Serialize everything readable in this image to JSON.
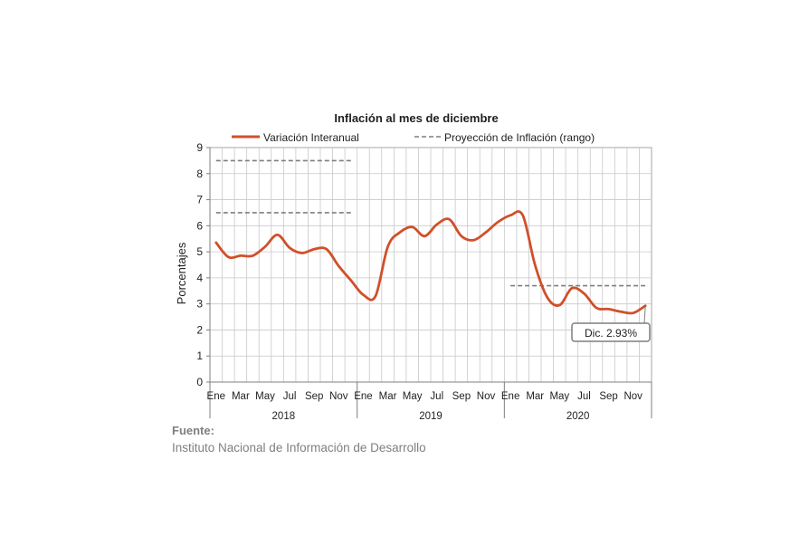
{
  "chart_data": {
    "type": "line",
    "title": "Inflación al mes de diciembre",
    "ylabel": "Porcentajes",
    "ylim": [
      0,
      9
    ],
    "yticks": [
      "0",
      "1",
      "2",
      "3",
      "4",
      "5",
      "6",
      "7",
      "8",
      "9"
    ],
    "month_labels": [
      "Ene",
      "Mar",
      "May",
      "Jul",
      "Sep",
      "Nov"
    ],
    "years": [
      "2018",
      "2019",
      "2020"
    ],
    "grid": true,
    "legend_position": "top",
    "series": [
      {
        "name": "Variación Interanual",
        "color": "#d0502a",
        "values": [
          5.35,
          4.8,
          4.85,
          4.85,
          5.2,
          5.65,
          5.15,
          4.95,
          5.1,
          5.1,
          4.45,
          3.9,
          3.35,
          3.3,
          5.2,
          5.75,
          5.95,
          5.6,
          6.05,
          6.25,
          5.6,
          5.45,
          5.75,
          6.15,
          6.4,
          6.4,
          4.5,
          3.25,
          2.95,
          3.6,
          3.4,
          2.85,
          2.8,
          2.7,
          2.65,
          2.93
        ]
      }
    ],
    "projection": {
      "name": "Proyección de Inflación (rango)",
      "color": "#7f7f7f",
      "lines": [
        {
          "from_index": 0,
          "to_index": 11,
          "value": 8.5
        },
        {
          "from_index": 0,
          "to_index": 11,
          "value": 6.5
        },
        {
          "from_index": 24,
          "to_index": 35,
          "value": 3.7
        }
      ]
    },
    "annotation": {
      "text": "Dic. 2.93%",
      "index": 35,
      "value": 2.93
    }
  },
  "source": {
    "label": "Fuente:",
    "text": "Instituto Nacional de Información de  Desarrollo"
  }
}
